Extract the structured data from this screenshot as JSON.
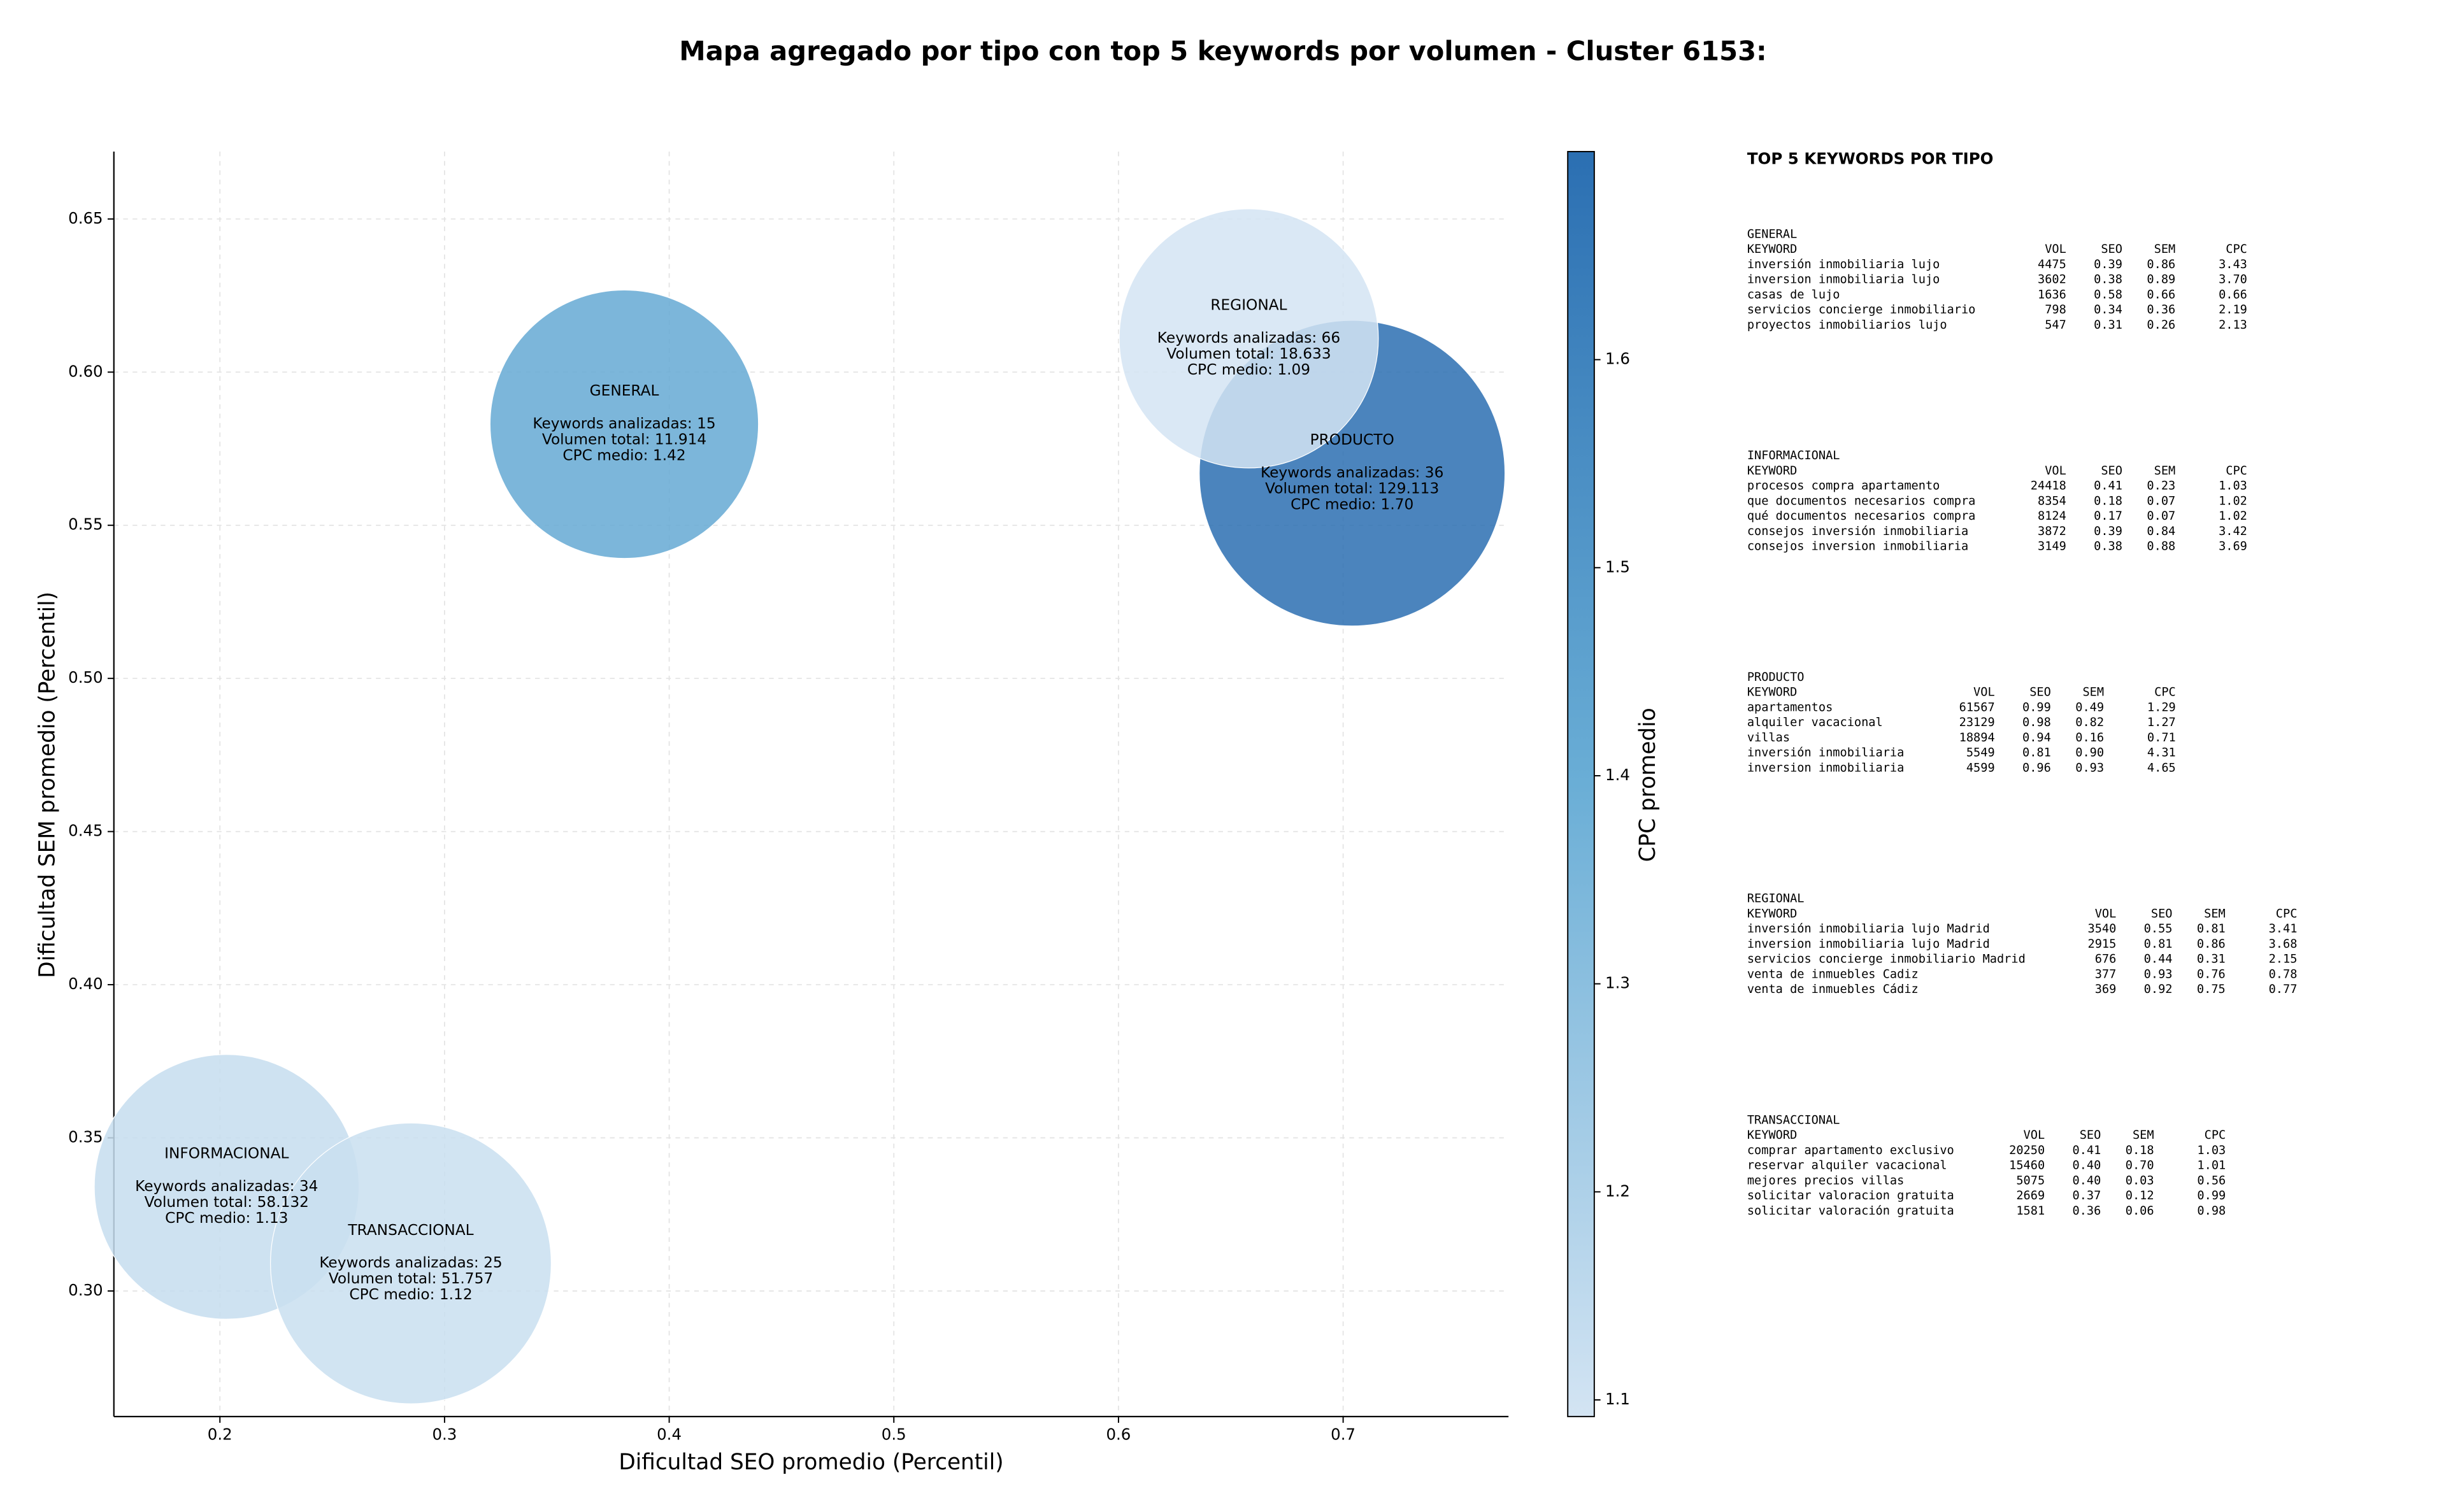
{
  "chart_data": {
    "type": "bubble",
    "title": "Mapa agregado por tipo con top 5 keywords por volumen - Cluster 6153:",
    "xlabel": "Dificultad SEO promedio (Percentil)",
    "ylabel": "Dificultad SEM promedio (Percentil)",
    "colorbar_label": "CPC promedio",
    "categories": [
      "GENERAL",
      "INFORMACIONAL",
      "PRODUCTO",
      "REGIONAL",
      "TRANSACCIONAL"
    ],
    "x": [
      0.38,
      0.203,
      0.704,
      0.658,
      0.285
    ],
    "y": [
      0.583,
      0.334,
      0.567,
      0.611,
      0.309
    ],
    "sizes": [
      7400,
      7200,
      9600,
      6900,
      8100
    ],
    "cpc": [
      1.42,
      1.13,
      1.7,
      1.09,
      1.12
    ],
    "annotations": [
      [
        "Keywords analizadas: 15",
        "Volumen total: 11.914",
        "CPC medio: 1.42"
      ],
      [
        "Keywords analizadas: 34",
        "Volumen total: 58.132",
        "CPC medio: 1.13"
      ],
      [
        "Keywords analizadas: 36",
        "Volumen total: 129.113",
        "CPC medio: 1.70"
      ],
      [
        "Keywords analizadas: 66",
        "Volumen total: 18.633",
        "CPC medio: 1.09"
      ],
      [
        "Keywords analizadas: 25",
        "Volumen total: 51.757",
        "CPC medio: 1.12"
      ]
    ],
    "colormap": [
      "#d3e4f3",
      "#6aaed6",
      "#2b6fb2"
    ],
    "xlim": [
      0.1528,
      0.7736
    ],
    "ylim": [
      0.259,
      0.672
    ],
    "xticks": [
      0.2,
      0.3,
      0.4,
      0.5,
      0.6,
      0.7
    ],
    "yticks": [
      {
        "value": 0.3,
        "label": "0.30"
      },
      0.35,
      {
        "value": 0.4,
        "label": "0.40"
      },
      0.45,
      {
        "value": 0.5,
        "label": "0.50"
      },
      0.55,
      {
        "value": 0.6,
        "label": "0.60"
      },
      0.65
    ],
    "clim": [
      1.092,
      1.7
    ],
    "cticks": [
      1.1,
      1.2,
      1.3,
      1.4,
      1.5,
      1.6
    ],
    "grid": true
  },
  "keyword_tables": {
    "title": "TOP 5 KEYWORDS POR TIPO",
    "header": [
      "KEYWORD",
      "VOL",
      "SEO",
      "SEM",
      "CPC"
    ],
    "groups": [
      {
        "name": "GENERAL",
        "rows": [
          [
            "inversión inmobiliaria lujo",
            "4475",
            "0.39",
            "0.86",
            "3.43"
          ],
          [
            "inversion inmobiliaria lujo",
            "3602",
            "0.38",
            "0.89",
            "3.70"
          ],
          [
            "casas de lujo",
            "1636",
            "0.58",
            "0.66",
            "0.66"
          ],
          [
            "servicios concierge inmobiliario",
            "798",
            "0.34",
            "0.36",
            "2.19"
          ],
          [
            "proyectos inmobiliarios lujo",
            "547",
            "0.31",
            "0.26",
            "2.13"
          ]
        ]
      },
      {
        "name": "INFORMACIONAL",
        "rows": [
          [
            "procesos compra apartamento",
            "24418",
            "0.41",
            "0.23",
            "1.03"
          ],
          [
            "que documentos necesarios compra",
            "8354",
            "0.18",
            "0.07",
            "1.02"
          ],
          [
            "qué documentos necesarios compra",
            "8124",
            "0.17",
            "0.07",
            "1.02"
          ],
          [
            "consejos inversión inmobiliaria",
            "3872",
            "0.39",
            "0.84",
            "3.42"
          ],
          [
            "consejos inversion inmobiliaria",
            "3149",
            "0.38",
            "0.88",
            "3.69"
          ]
        ]
      },
      {
        "name": "PRODUCTO",
        "rows": [
          [
            "apartamentos",
            "61567",
            "0.99",
            "0.49",
            "1.29"
          ],
          [
            "alquiler vacacional",
            "23129",
            "0.98",
            "0.82",
            "1.27"
          ],
          [
            "villas",
            "18894",
            "0.94",
            "0.16",
            "0.71"
          ],
          [
            "inversión inmobiliaria",
            "5549",
            "0.81",
            "0.90",
            "4.31"
          ],
          [
            "inversion inmobiliaria",
            "4599",
            "0.96",
            "0.93",
            "4.65"
          ]
        ]
      },
      {
        "name": "REGIONAL",
        "rows": [
          [
            "inversión inmobiliaria lujo Madrid",
            "3540",
            "0.55",
            "0.81",
            "3.41"
          ],
          [
            "inversion inmobiliaria lujo Madrid",
            "2915",
            "0.81",
            "0.86",
            "3.68"
          ],
          [
            "servicios concierge inmobiliario Madrid",
            "676",
            "0.44",
            "0.31",
            "2.15"
          ],
          [
            "venta de inmuebles Cadiz",
            "377",
            "0.93",
            "0.76",
            "0.78"
          ],
          [
            "venta de inmuebles Cádiz",
            "369",
            "0.92",
            "0.75",
            "0.77"
          ]
        ]
      },
      {
        "name": "TRANSACCIONAL",
        "rows": [
          [
            "comprar apartamento exclusivo",
            "20250",
            "0.41",
            "0.18",
            "1.03"
          ],
          [
            "reservar alquiler vacacional",
            "15460",
            "0.40",
            "0.70",
            "1.01"
          ],
          [
            "mejores precios villas",
            "5075",
            "0.40",
            "0.03",
            "0.56"
          ],
          [
            "solicitar valoracion gratuita",
            "2669",
            "0.37",
            "0.12",
            "0.99"
          ],
          [
            "solicitar valoración gratuita",
            "1581",
            "0.36",
            "0.06",
            "0.98"
          ]
        ]
      }
    ]
  }
}
